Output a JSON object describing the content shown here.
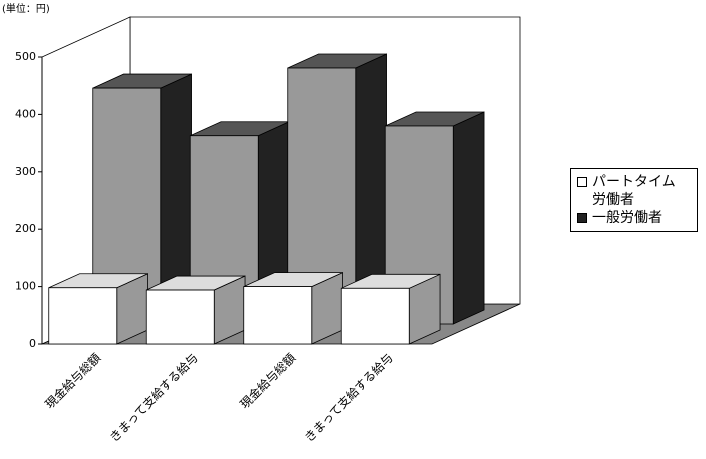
{
  "chart_data": {
    "type": "bar3d",
    "unit_label": "(単位：円)",
    "categories": [
      "現金給与総額",
      "きまって支給する給与",
      "現金給与総額",
      "きまって支給する給与"
    ],
    "series": [
      {
        "name": "パートタイム労働者",
        "color": "#ffffff",
        "values": [
          98,
          94,
          100,
          97
        ]
      },
      {
        "name": "一般労働者",
        "color": "#222222",
        "values": [
          411,
          328,
          446,
          345
        ]
      }
    ],
    "ylim": [
      0,
      500
    ],
    "yticks": [
      0,
      100,
      200,
      300,
      400,
      500
    ],
    "legend": "right"
  }
}
